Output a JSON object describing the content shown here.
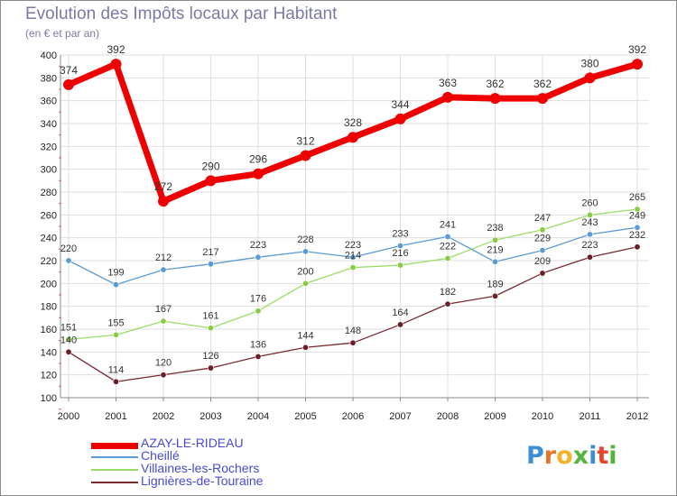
{
  "header": {
    "title": "Evolution des Impôts locaux par Habitant",
    "subtitle": "(en € et par an)"
  },
  "logo": {
    "letters": [
      "P",
      "r",
      "o",
      "x",
      "i",
      "t",
      "i"
    ],
    "colors": [
      "#3a8fd6",
      "#e8732a",
      "#f2b22a",
      "#56b33c",
      "#3a8fd6",
      "#e8432a",
      "#56b33c"
    ]
  },
  "chart_data": {
    "type": "line",
    "title": "Evolution des Impôts locaux par Habitant",
    "subtitle": "(en € et par an)",
    "xlabel": "",
    "ylabel": "",
    "ylim": [
      100,
      400
    ],
    "yticks": [
      100,
      120,
      140,
      160,
      180,
      200,
      220,
      240,
      260,
      280,
      300,
      320,
      340,
      360,
      380,
      400
    ],
    "categories": [
      "2000",
      "2001",
      "2002",
      "2003",
      "2004",
      "2005",
      "2006",
      "2007",
      "2008",
      "2009",
      "2010",
      "2011",
      "2012"
    ],
    "grid": true,
    "legend_position": "bottom-left",
    "series": [
      {
        "name": "AZAY-LE-RIDEAU",
        "color": "#ee0000",
        "marker": "#ee0000",
        "values": [
          374,
          392,
          272,
          290,
          296,
          312,
          328,
          344,
          363,
          362,
          362,
          380,
          392
        ]
      },
      {
        "name": "Cheillé",
        "color": "#5b9bd5",
        "marker": "#5b9bd5",
        "values": [
          220,
          199,
          212,
          217,
          223,
          228,
          223,
          233,
          241,
          219,
          229,
          243,
          249
        ]
      },
      {
        "name": "Villaines-les-Rochers",
        "color": "#99dd66",
        "marker": "#88cc44",
        "values": [
          151,
          155,
          167,
          161,
          176,
          200,
          214,
          216,
          222,
          238,
          247,
          260,
          265
        ]
      },
      {
        "name": "Lignières-de-Touraine",
        "color": "#7a2830",
        "marker": "#6b1f28",
        "values": [
          140,
          114,
          120,
          126,
          136,
          144,
          148,
          164,
          182,
          189,
          209,
          223,
          232
        ]
      }
    ]
  }
}
